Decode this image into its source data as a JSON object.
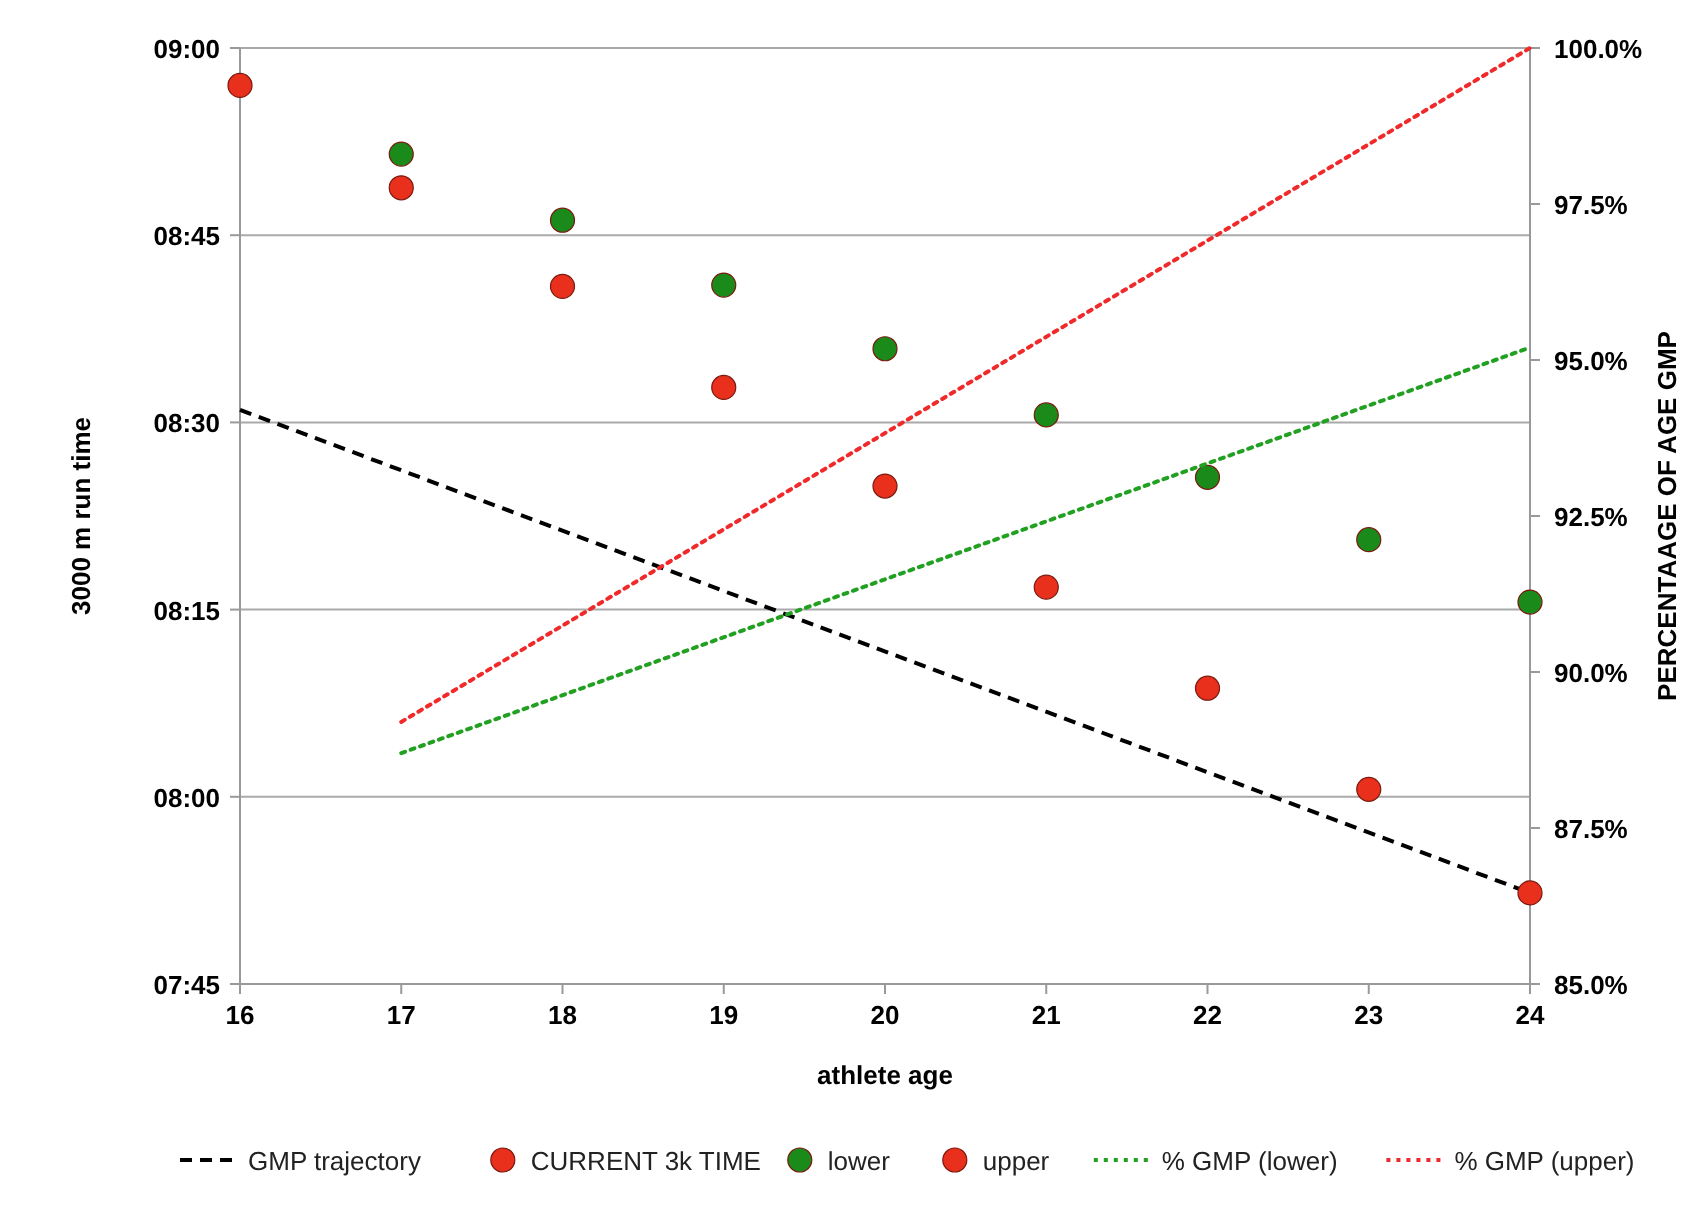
{
  "chart_data": {
    "type": "scatter",
    "xlabel": "athlete age",
    "ylabel": "3000 m run time",
    "y2label": "PERCENTAAGE OF AGE GMP",
    "xlim": [
      16,
      24
    ],
    "xticks": [
      16,
      17,
      18,
      19,
      20,
      21,
      22,
      23,
      24
    ],
    "ylim": [
      465,
      540
    ],
    "yticks": [
      {
        "value": 465,
        "label": "07:45"
      },
      {
        "value": 480,
        "label": "08:00"
      },
      {
        "value": 495,
        "label": "08:15"
      },
      {
        "value": 510,
        "label": "08:30"
      },
      {
        "value": 525,
        "label": "08:45"
      },
      {
        "value": 540,
        "label": "09:00"
      }
    ],
    "y2lim": [
      85,
      100
    ],
    "y2ticks": [
      {
        "value": 85,
        "label": "85.0%"
      },
      {
        "value": 87.5,
        "label": "87.5%"
      },
      {
        "value": 90,
        "label": "90.0%"
      },
      {
        "value": 92.5,
        "label": "92.5%"
      },
      {
        "value": 95,
        "label": "95.0%"
      },
      {
        "value": 97.5,
        "label": "97.5%"
      },
      {
        "value": 100,
        "label": "100.0%"
      }
    ],
    "grid": "y",
    "legend": "bottom",
    "series": [
      {
        "name": "GMP trajectory",
        "type": "line",
        "color": "#000000",
        "line_style": "dashed",
        "marker": "none",
        "x": [
          16,
          24
        ],
        "values": [
          511,
          472.3
        ]
      },
      {
        "name": "CURRENT 3k TIME",
        "color": "#e8301c",
        "marker": "circle",
        "x": [
          16
        ],
        "values": [
          537
        ]
      },
      {
        "name": "lower",
        "color": "#1a8a1a",
        "marker": "circle",
        "x": [
          17,
          18,
          19,
          20,
          21,
          22,
          23,
          24
        ],
        "values": [
          531.5,
          526.2,
          521,
          515.9,
          510.6,
          505.6,
          500.6,
          495.6
        ]
      },
      {
        "name": "upper",
        "color": "#e8301c",
        "marker": "circle",
        "x": [
          17,
          18,
          19,
          20,
          21,
          22,
          23,
          24
        ],
        "values": [
          528.8,
          520.9,
          512.8,
          504.9,
          496.8,
          488.7,
          480.6,
          472.3
        ]
      },
      {
        "name": "% GMP (lower)",
        "type": "line",
        "axis": "y2",
        "color": "#22a022",
        "line_style": "dotted",
        "marker": "none",
        "x": [
          17,
          24
        ],
        "values": [
          88.7,
          95.2
        ]
      },
      {
        "name": "% GMP (upper)",
        "type": "line",
        "axis": "y2",
        "color": "#f02a2a",
        "line_style": "dotted",
        "marker": "none",
        "x": [
          17,
          24
        ],
        "values": [
          89.2,
          100
        ]
      }
    ]
  }
}
